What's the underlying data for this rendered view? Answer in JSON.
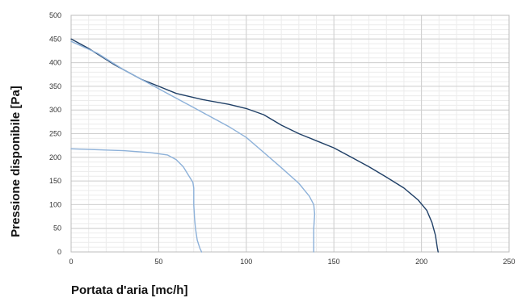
{
  "chart_data": {
    "type": "line",
    "xlabel": "Portata d'aria [mc/h]",
    "ylabel": "Pressione disponibile [Pa]",
    "xlim": [
      0,
      250
    ],
    "ylim": [
      0,
      500
    ],
    "x_ticks": [
      0,
      50,
      100,
      150,
      200,
      250
    ],
    "y_ticks": [
      0,
      50,
      100,
      150,
      200,
      250,
      300,
      350,
      400,
      450,
      500
    ],
    "grid": true,
    "minor_grid": true,
    "legend": "none",
    "series": [
      {
        "color": "#1f3f66",
        "points": [
          [
            0,
            450
          ],
          [
            10,
            430
          ],
          [
            25,
            395
          ],
          [
            40,
            365
          ],
          [
            50,
            350
          ],
          [
            60,
            335
          ],
          [
            75,
            322
          ],
          [
            90,
            312
          ],
          [
            100,
            303
          ],
          [
            110,
            290
          ],
          [
            120,
            268
          ],
          [
            130,
            250
          ],
          [
            140,
            235
          ],
          [
            150,
            220
          ],
          [
            160,
            200
          ],
          [
            170,
            180
          ],
          [
            180,
            158
          ],
          [
            190,
            135
          ],
          [
            198,
            110
          ],
          [
            203,
            88
          ],
          [
            206,
            62
          ],
          [
            208,
            35
          ],
          [
            209,
            10
          ],
          [
            209.5,
            0
          ]
        ]
      },
      {
        "color": "#8db1d9",
        "points": [
          [
            0,
            445
          ],
          [
            15,
            420
          ],
          [
            30,
            385
          ],
          [
            45,
            355
          ],
          [
            55,
            335
          ],
          [
            70,
            305
          ],
          [
            80,
            285
          ],
          [
            90,
            265
          ],
          [
            100,
            242
          ],
          [
            110,
            210
          ],
          [
            120,
            178
          ],
          [
            130,
            145
          ],
          [
            136,
            118
          ],
          [
            138.5,
            100
          ],
          [
            139,
            80
          ],
          [
            138.5,
            50
          ],
          [
            138.5,
            20
          ],
          [
            138.5,
            0
          ]
        ]
      },
      {
        "color": "#8db1d9",
        "points": [
          [
            0,
            218
          ],
          [
            15,
            216
          ],
          [
            30,
            214
          ],
          [
            45,
            210
          ],
          [
            55,
            205
          ],
          [
            60,
            195
          ],
          [
            64,
            180
          ],
          [
            67,
            162
          ],
          [
            69.5,
            147
          ],
          [
            70,
            135
          ],
          [
            70,
            100
          ],
          [
            70.5,
            70
          ],
          [
            71,
            50
          ],
          [
            72,
            25
          ],
          [
            73.5,
            8
          ],
          [
            74.5,
            0
          ]
        ]
      }
    ]
  }
}
